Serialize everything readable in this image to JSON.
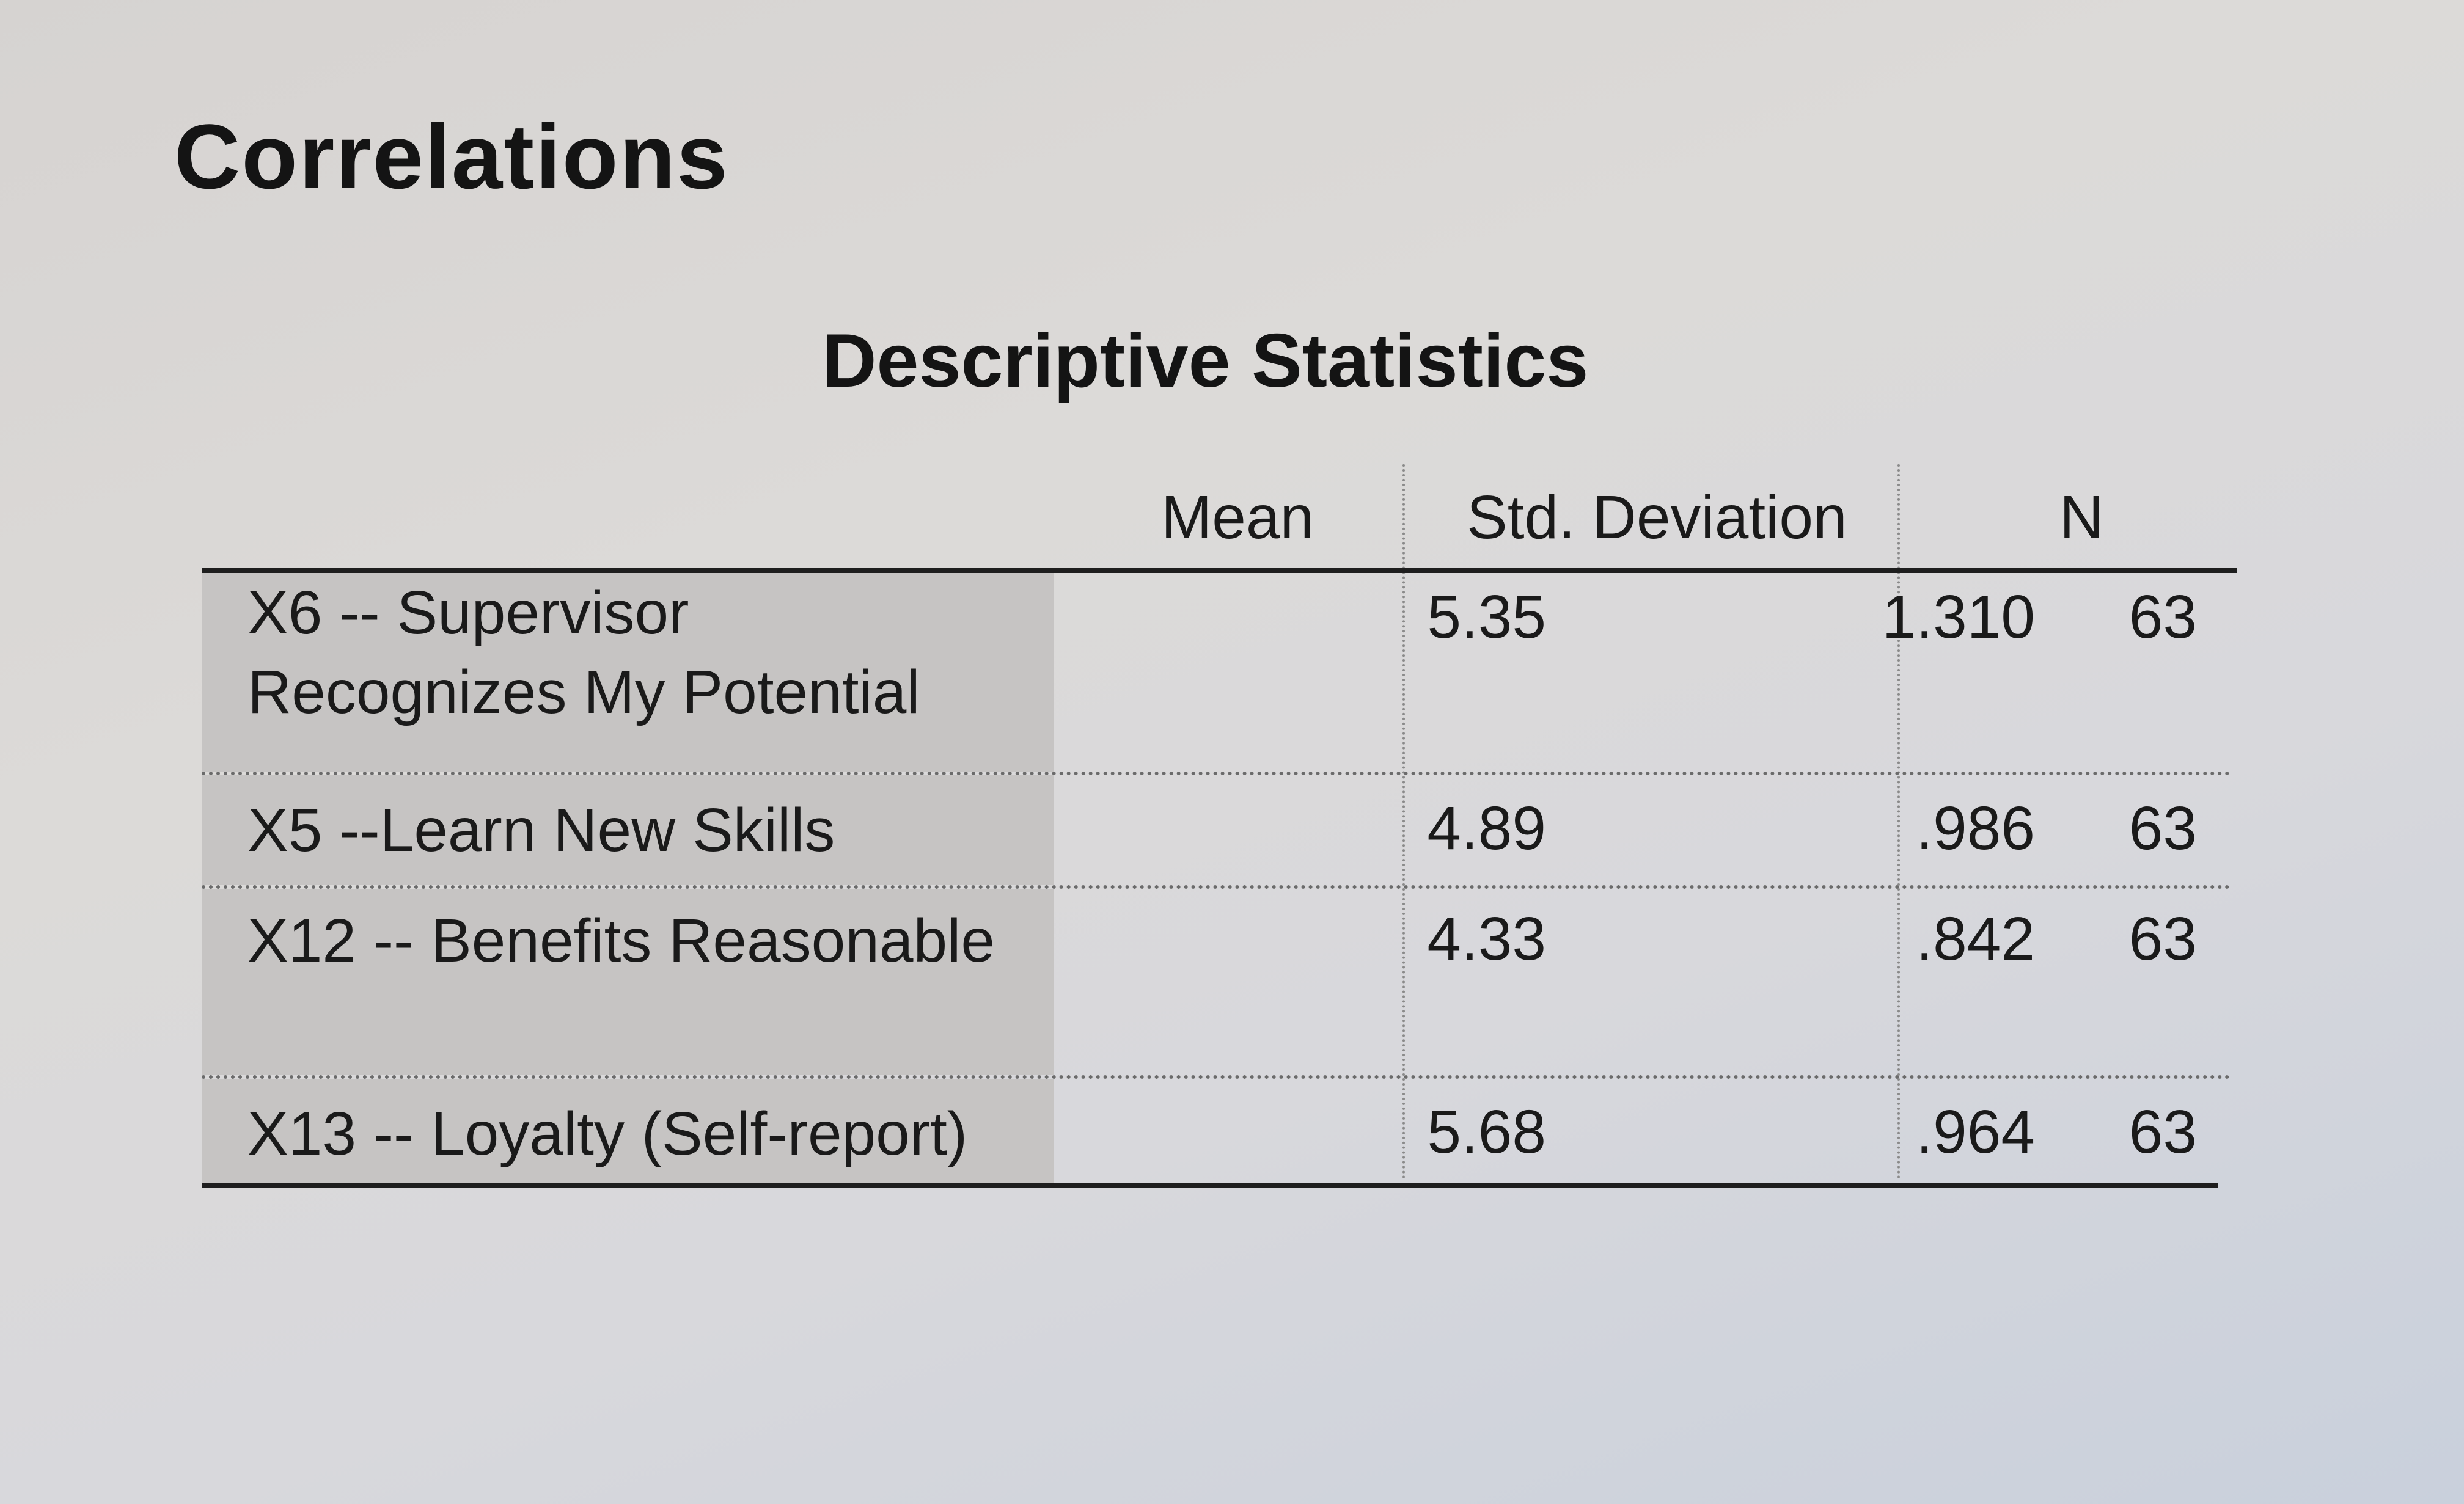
{
  "heading": "Correlations",
  "table": {
    "title": "Descriptive Statistics",
    "columns": {
      "label": "",
      "mean": "Mean",
      "sd": "Std. Deviation",
      "n": "N"
    },
    "rows": [
      {
        "label_line1": "X6 -- Supervisor",
        "label_line2": "Recognizes My Potential",
        "mean": "5.35",
        "sd": "1.310",
        "n": "63"
      },
      {
        "label_line1": "X5 --Learn New Skills",
        "mean": "4.89",
        "sd": ".986",
        "n": "63"
      },
      {
        "label_line1": "X12 -- Benefits Reasonable",
        "mean": "4.33",
        "sd": ".842",
        "n": "63"
      },
      {
        "label_line1": "X13 -- Loyalty (Self-report)",
        "mean": "5.68",
        "sd": ".964",
        "n": "63"
      }
    ]
  }
}
